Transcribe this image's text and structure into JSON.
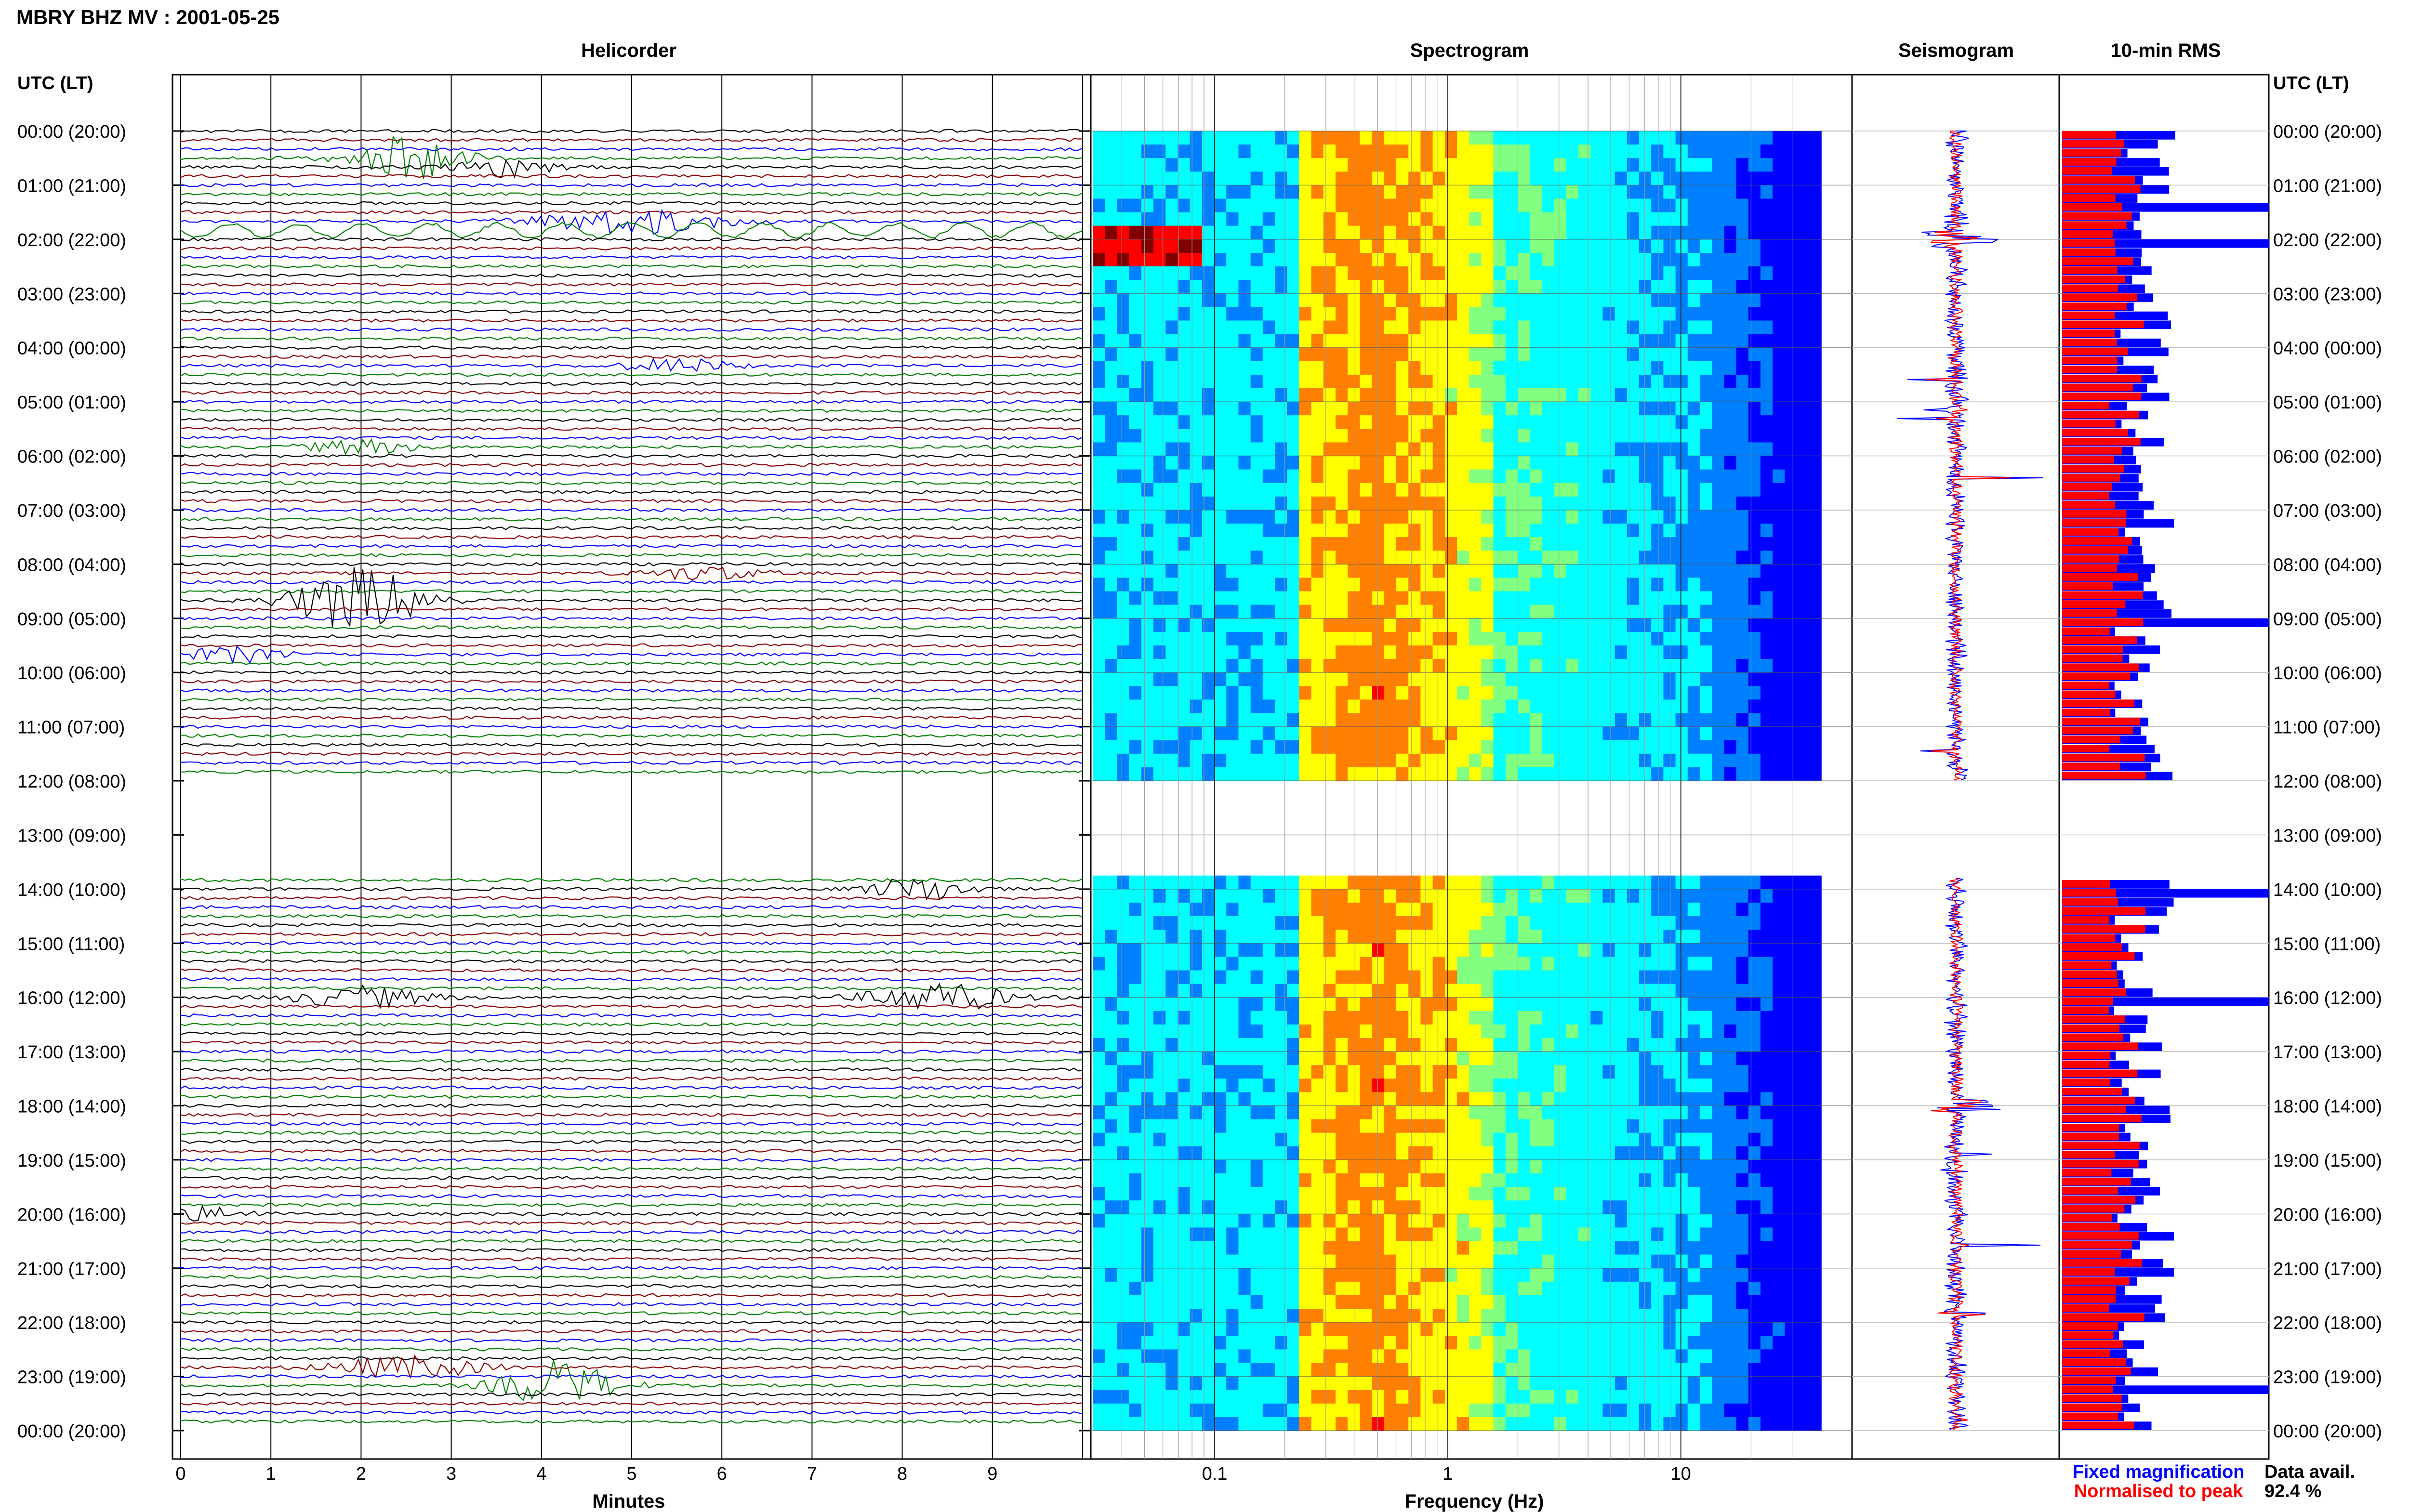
{
  "header": {
    "title": "MBRY BHZ MV : 2001-05-25"
  },
  "panels": {
    "helicorder": "Helicorder",
    "spectrogram": "Spectrogram",
    "seismogram": "Seismogram",
    "rms": "10-min RMS"
  },
  "axes": {
    "left_header": "UTC (LT)",
    "right_header": "UTC (LT)",
    "minutes_label": "Minutes",
    "frequency_label": "Frequency (Hz)",
    "minute_ticks": [
      "0",
      "1",
      "2",
      "3",
      "4",
      "5",
      "6",
      "7",
      "8",
      "9"
    ],
    "freq_ticks": [
      "0.1",
      "1",
      "10"
    ],
    "time_labels": [
      "00:00 (20:00)",
      "01:00 (21:00)",
      "02:00 (22:00)",
      "03:00 (23:00)",
      "04:00 (00:00)",
      "05:00 (01:00)",
      "06:00 (02:00)",
      "07:00 (03:00)",
      "08:00 (04:00)",
      "09:00 (05:00)",
      "10:00 (06:00)",
      "11:00 (07:00)",
      "12:00 (08:00)",
      "13:00 (09:00)",
      "14:00 (10:00)",
      "15:00 (11:00)",
      "16:00 (12:00)",
      "17:00 (13:00)",
      "18:00 (14:00)",
      "19:00 (15:00)",
      "20:00 (16:00)",
      "21:00 (17:00)",
      "22:00 (18:00)",
      "23:00 (19:00)",
      "00:00 (20:00)"
    ]
  },
  "legend": {
    "fixed": "Fixed magnification",
    "normalised": "Normalised to peak",
    "fixed_color": "#0000ff",
    "normalised_color": "#ff0000"
  },
  "availability": {
    "label": "Data avail.",
    "value": "92.4 %"
  },
  "chart_data": {
    "type": "heatmap",
    "title": "MBRY BHZ MV : 2001-05-25",
    "helicorder_colors": [
      "#000000",
      "#8b0000",
      "#0000ff",
      "#008000"
    ],
    "helicorder_minutes": [
      0,
      10
    ],
    "hours_utc": [
      0,
      24
    ],
    "data_gap_hours": [
      12.0,
      13.8
    ],
    "frequency_range_hz": [
      0.03,
      40
    ],
    "frequency_scale": "log",
    "spectrogram_colormap": [
      "#00008f",
      "#0000ff",
      "#0080ff",
      "#00ffff",
      "#80ff80",
      "#ffff00",
      "#ff8000",
      "#ff0000",
      "#800000"
    ],
    "rms_max_blue_rows": [
      1.4,
      2.0,
      9.0,
      14.0,
      16.0,
      23.1
    ],
    "rms_series": [
      {
        "name": "Fixed magnification",
        "color": "#0000ff"
      },
      {
        "name": "Normalised to peak",
        "color": "#ff0000"
      }
    ]
  }
}
